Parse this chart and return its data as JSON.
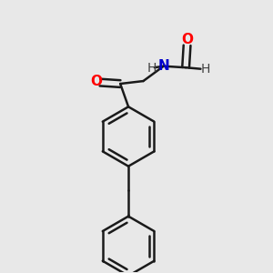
{
  "bg_color": "#e8e8e8",
  "bond_color": "#1a1a1a",
  "bond_width": 1.8,
  "atom_colors": {
    "O": "#ff0000",
    "N": "#0000cd",
    "H": "#404040",
    "C": "#1a1a1a"
  },
  "font_size": 11,
  "fig_size": [
    3.0,
    3.0
  ],
  "dpi": 100,
  "ring_r": 0.11
}
